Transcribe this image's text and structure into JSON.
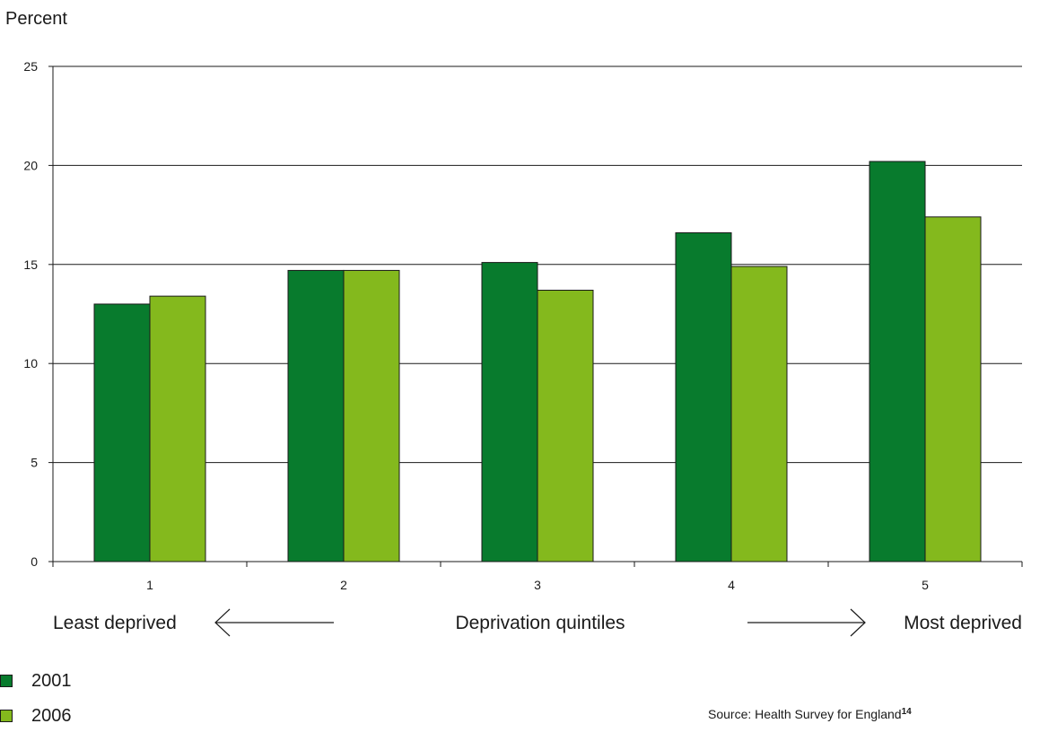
{
  "chart_data": {
    "type": "bar",
    "ylabel": "Percent",
    "xlabel": "Deprivation quintiles",
    "x_left_note": "Least deprived",
    "x_right_note": "Most deprived",
    "categories": [
      "1",
      "2",
      "3",
      "4",
      "5"
    ],
    "series": [
      {
        "name": "2001",
        "color": "#087b2d",
        "values": [
          13.0,
          14.7,
          15.1,
          16.6,
          20.2
        ]
      },
      {
        "name": "2006",
        "color": "#84b91d",
        "values": [
          13.4,
          14.7,
          13.7,
          14.9,
          17.4
        ]
      }
    ],
    "ylim": [
      0,
      25
    ],
    "yticks": [
      0,
      5,
      10,
      15,
      20,
      25
    ],
    "grid": true,
    "legend_position": "bottom-left"
  },
  "source": {
    "text": "Source: Health Survey for England",
    "ref": "14"
  }
}
